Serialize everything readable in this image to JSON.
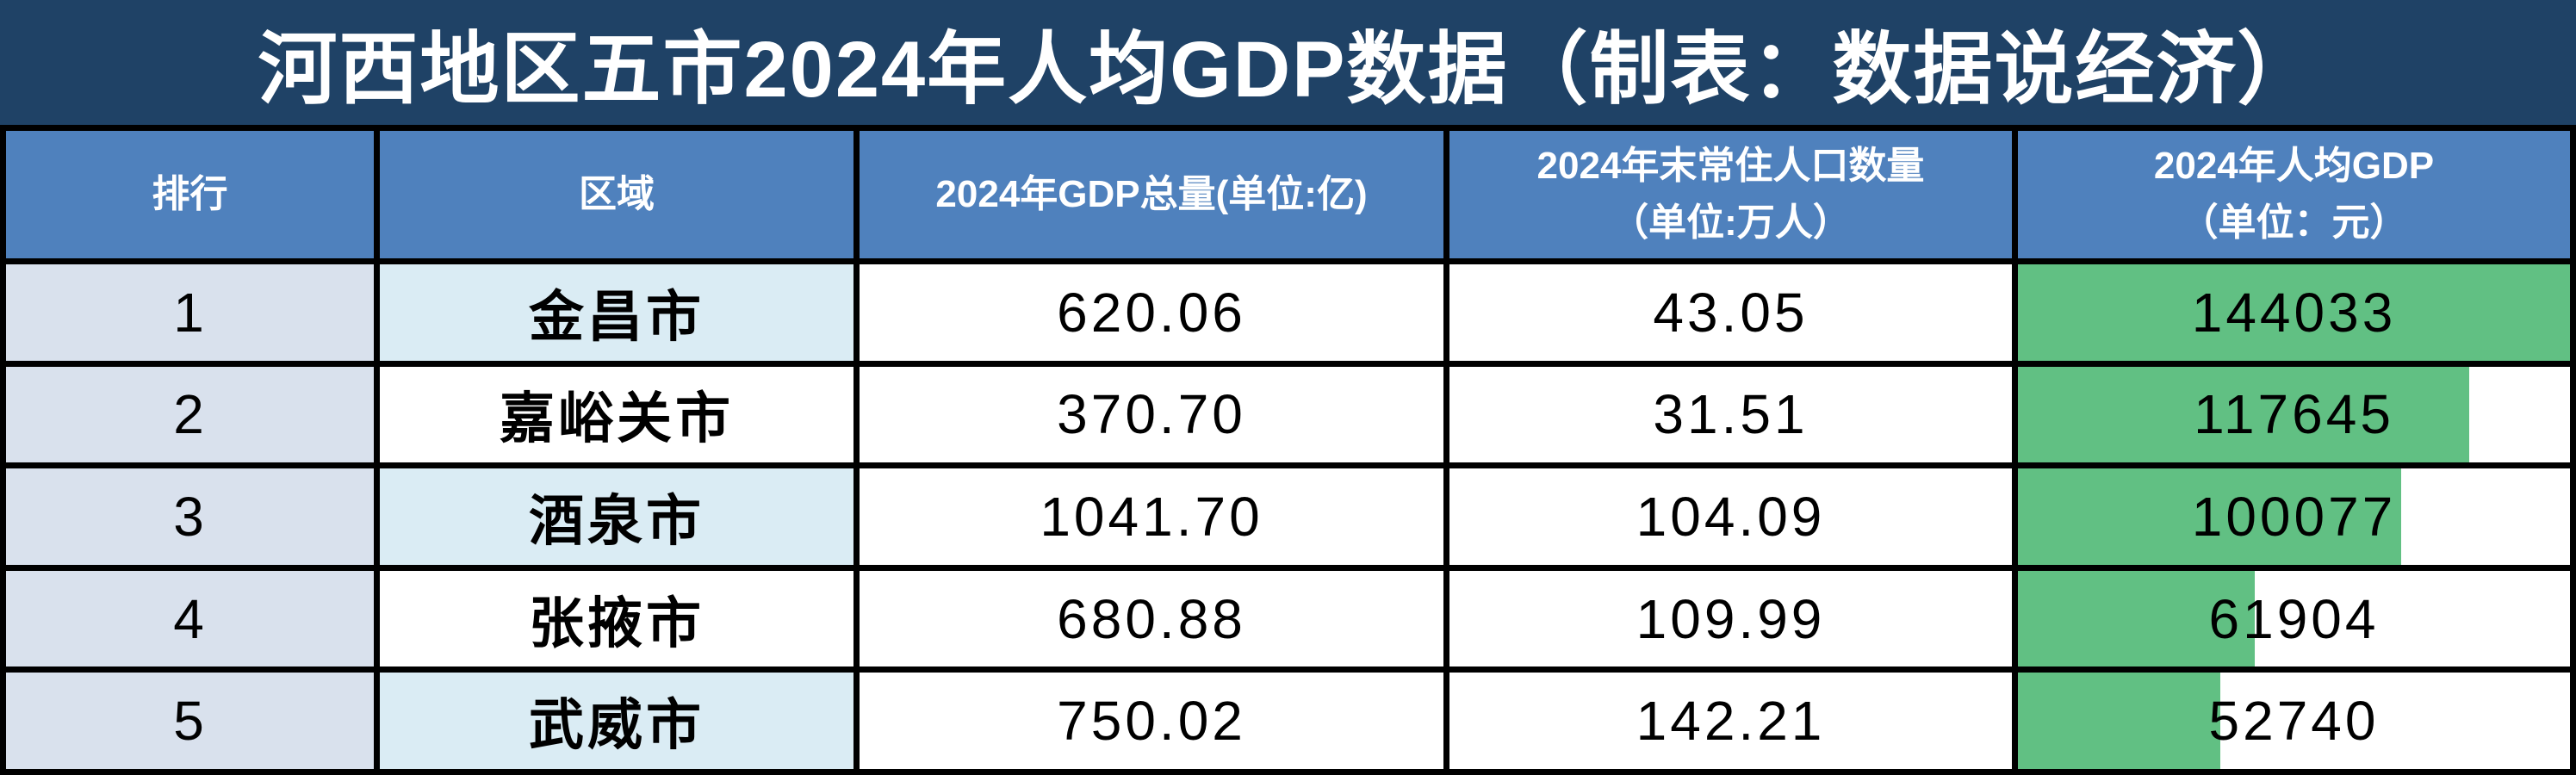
{
  "title": "河西地区五市2024年人均GDP数据（制表：数据说经济）",
  "columns": [
    {
      "label": "排行"
    },
    {
      "label": "区域"
    },
    {
      "label": "2024年GDP总量(单位:亿)"
    },
    {
      "label": "2024年末常住人口数量",
      "label2": "（单位:万人）"
    },
    {
      "label": "2024年人均GDP",
      "label2": "（单位：元）"
    }
  ],
  "rows": [
    {
      "rank": "1",
      "region": "金昌市",
      "gdp_total": "620.06",
      "population": "43.05",
      "gdp_per_capita": "144033"
    },
    {
      "rank": "2",
      "region": "嘉峪关市",
      "gdp_total": "370.70",
      "population": "31.51",
      "gdp_per_capita": "117645"
    },
    {
      "rank": "3",
      "region": "酒泉市",
      "gdp_total": "1041.70",
      "population": "104.09",
      "gdp_per_capita": "100077"
    },
    {
      "rank": "4",
      "region": "张掖市",
      "gdp_total": "680.88",
      "population": "109.99",
      "gdp_per_capita": "61904"
    },
    {
      "rank": "5",
      "region": "武威市",
      "gdp_total": "750.02",
      "population": "142.21",
      "gdp_per_capita": "52740"
    }
  ],
  "colors": {
    "title_bg": "#1F4266",
    "header_bg": "#4F81BD",
    "rank_col_bg": "#D9E1ED",
    "region_alt_bg": "#DAECF4",
    "databar_green": "#61C083",
    "gridline": "#000000"
  },
  "chart_data": {
    "type": "table",
    "title": "河西地区五市2024年人均GDP数据（制表：数据说经济）",
    "columns": [
      "排行",
      "区域",
      "2024年GDP总量(单位:亿)",
      "2024年末常住人口数量（单位:万人）",
      "2024年人均GDP（单位：元）"
    ],
    "rows": [
      [
        1,
        "金昌市",
        620.06,
        43.05,
        144033
      ],
      [
        2,
        "嘉峪关市",
        370.7,
        31.51,
        117645
      ],
      [
        3,
        "酒泉市",
        1041.7,
        104.09,
        100077
      ],
      [
        4,
        "张掖市",
        680.88,
        109.99,
        61904
      ],
      [
        5,
        "武威市",
        750.02,
        142.21,
        52740
      ]
    ],
    "databar_column": "2024年人均GDP（单位：元）",
    "databar_scale_max": 144033,
    "databar_widths_pct": [
      100,
      81.7,
      69.5,
      43.0,
      36.6
    ]
  }
}
